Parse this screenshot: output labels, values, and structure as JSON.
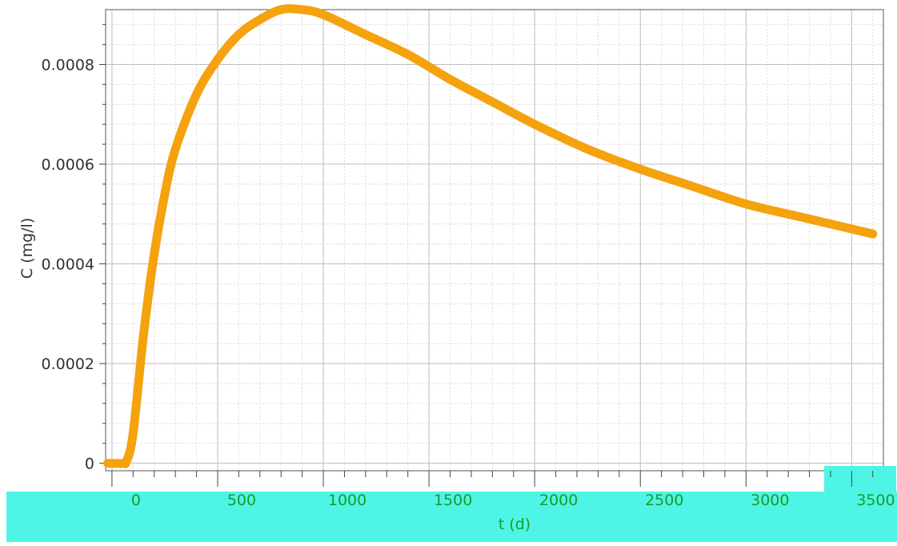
{
  "chart_data": {
    "type": "line",
    "title": "",
    "xlabel": "t  (d)",
    "ylabel": "C  (mg/l)",
    "xlim": [
      -30,
      3650
    ],
    "ylim": [
      -1.5e-05,
      0.00091
    ],
    "x_ticks": [
      0,
      500,
      1000,
      1500,
      2000,
      2500,
      3000,
      3500
    ],
    "x_tick_labels": [
      "0",
      "500",
      "1000",
      "1500",
      "2000",
      "2500",
      "3000",
      "3500"
    ],
    "y_ticks": [
      0,
      0.0002,
      0.0004,
      0.0006,
      0.0008
    ],
    "y_tick_labels": [
      "0",
      "0.0002",
      "0.0004",
      "0.0006",
      "0.0008"
    ],
    "grid": true,
    "legend": "none",
    "series": [
      {
        "color": "#f5a20f",
        "x": [
          -20,
          50,
          70,
          100,
          150,
          200,
          250,
          300,
          400,
          500,
          600,
          700,
          800,
          900,
          1000,
          1200,
          1400,
          1600,
          1800,
          2000,
          2250,
          2500,
          2750,
          3000,
          3250,
          3500,
          3600
        ],
        "y": [
          0,
          0,
          5e-06,
          6e-05,
          0.00026,
          0.00042,
          0.00054,
          0.00063,
          0.00074,
          0.00081,
          0.00086,
          0.00089,
          0.00091,
          0.00091,
          0.0009,
          0.00086,
          0.00082,
          0.00077,
          0.000725,
          0.00068,
          0.00063,
          0.00059,
          0.000555,
          0.00052,
          0.000495,
          0.00047,
          0.00046
        ]
      }
    ]
  },
  "overlay": {
    "band_color": "#4ef5e6",
    "label_color": "#1a9a2a"
  }
}
